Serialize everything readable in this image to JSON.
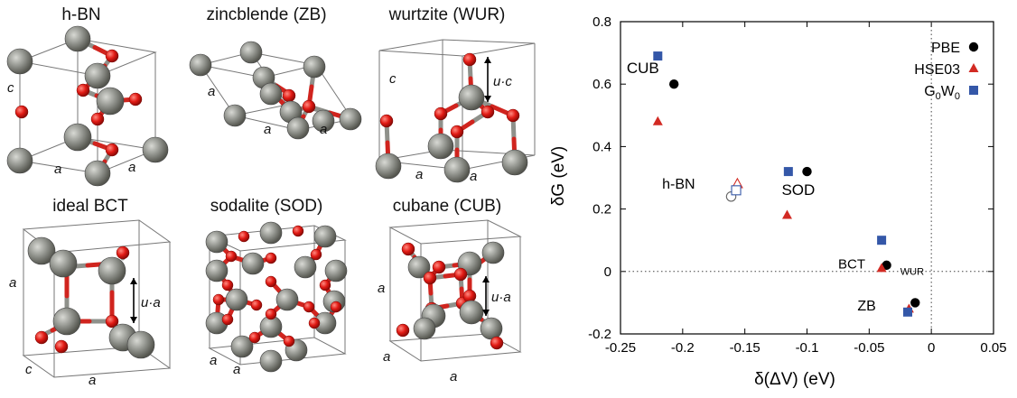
{
  "structures": [
    {
      "id": "hbn",
      "title": "h-BN",
      "labels": [
        "c",
        "a",
        "a"
      ]
    },
    {
      "id": "zb",
      "title": "zincblende (ZB)",
      "labels": [
        "a",
        "a",
        "a"
      ]
    },
    {
      "id": "wur",
      "title": "wurtzite (WUR)",
      "labels": [
        "c",
        "a",
        "a",
        "u·c"
      ]
    },
    {
      "id": "bct",
      "title": "ideal BCT",
      "labels": [
        "a",
        "c",
        "a",
        "u·a"
      ]
    },
    {
      "id": "sod",
      "title": "sodalite (SOD)",
      "labels": [
        "a",
        "a"
      ]
    },
    {
      "id": "cub",
      "title": "cubane (CUB)",
      "labels": [
        "a",
        "a",
        "a",
        "u·a"
      ]
    }
  ],
  "colors": {
    "atom_gray": "#8f918b",
    "atom_red": "#e11a14",
    "pbe": "#000000",
    "hse03": "#d22a23",
    "g0w0": "#3457a8"
  },
  "chart_data": {
    "type": "scatter",
    "xlabel": "δ(ΔV) (eV)",
    "ylabel": "δG (eV)",
    "xlim": [
      -0.25,
      0.05
    ],
    "ylim": [
      -0.2,
      0.8
    ],
    "xticks": [
      "-0.25",
      "-0.2",
      "-0.15",
      "-0.1",
      "-0.05",
      "0",
      "0.05"
    ],
    "xtick_values": [
      -0.25,
      -0.2,
      -0.15,
      -0.1,
      -0.05,
      0,
      0.05
    ],
    "yticks": [
      "-0.2",
      "0",
      "0.2",
      "0.4",
      "0.6",
      "0.8"
    ],
    "ytick_values": [
      -0.2,
      0,
      0.2,
      0.4,
      0.6,
      0.8
    ],
    "legend_position": "top-right",
    "legend": [
      {
        "name": "PBE",
        "marker": "circle"
      },
      {
        "name": "HSE03",
        "marker": "triangle"
      },
      {
        "name": "G0W0",
        "marker": "square"
      }
    ],
    "series": [
      {
        "name": "PBE",
        "marker": "circle",
        "points": [
          {
            "label": "CUB",
            "x": -0.207,
            "y": 0.6
          },
          {
            "label": "SOD",
            "x": -0.1,
            "y": 0.32
          },
          {
            "label": "BCT",
            "x": -0.036,
            "y": 0.02
          },
          {
            "label": "ZB",
            "x": -0.013,
            "y": -0.1
          }
        ],
        "hollow_points": [
          {
            "label": "h-BN",
            "x": -0.161,
            "y": 0.24
          }
        ]
      },
      {
        "name": "HSE03",
        "marker": "triangle",
        "points": [
          {
            "label": "CUB",
            "x": -0.22,
            "y": 0.48
          },
          {
            "label": "SOD",
            "x": -0.116,
            "y": 0.18
          },
          {
            "label": "BCT",
            "x": -0.04,
            "y": 0.01
          },
          {
            "label": "ZB",
            "x": -0.018,
            "y": -0.12
          }
        ],
        "hollow_points": [
          {
            "label": "h-BN",
            "x": -0.156,
            "y": 0.28
          }
        ]
      },
      {
        "name": "G0W0",
        "marker": "square",
        "points": [
          {
            "label": "CUB",
            "x": -0.22,
            "y": 0.69
          },
          {
            "label": "SOD",
            "x": -0.115,
            "y": 0.32
          },
          {
            "label": "BCT",
            "x": -0.04,
            "y": 0.1
          },
          {
            "label": "ZB",
            "x": -0.019,
            "y": -0.13
          }
        ],
        "hollow_points": [
          {
            "label": "h-BN",
            "x": -0.157,
            "y": 0.26
          }
        ]
      }
    ],
    "annotations": [
      "CUB",
      "h-BN",
      "SOD",
      "BCT",
      "WUR",
      "ZB"
    ],
    "reference_lines": {
      "x": 0,
      "y": 0,
      "style": "dotted"
    }
  }
}
